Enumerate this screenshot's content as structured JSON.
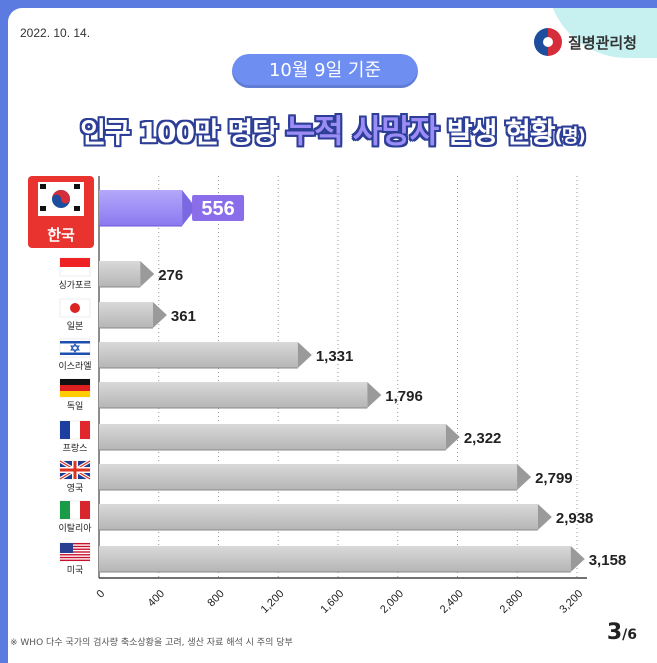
{
  "header": {
    "date": "2022. 10. 14.",
    "agency": "질병관리청",
    "basis": "10월 9일 기준",
    "title_pre": "인구 100만 명당 ",
    "title_hl": "누적 사망자",
    "title_post": " 발생 현황",
    "title_unit": "(명)"
  },
  "footer": {
    "note": "※ WHO 다수 국가의 검사량 축소상황을 고려, 생산 자료 해석 시 주의 당부",
    "page_current": "3",
    "page_total": "/6"
  },
  "colors": {
    "highlight_bar": "#9c8cf5",
    "bar": "#c8c8c8",
    "background": "#5b7be0",
    "title_outline": "#2c3e96"
  },
  "chart_data": {
    "type": "bar",
    "orientation": "horizontal",
    "title": "인구 100만 명당 누적 사망자 발생 현황(명)",
    "categories": [
      "한국",
      "싱가포르",
      "일본",
      "이스라엘",
      "독일",
      "프랑스",
      "영국",
      "이탈리아",
      "미국"
    ],
    "values": [
      556,
      276,
      361,
      1331,
      1796,
      2322,
      2799,
      2938,
      3158
    ],
    "value_labels": [
      "556",
      "276",
      "361",
      "1,331",
      "1,796",
      "2,322",
      "2,799",
      "2,938",
      "3,158"
    ],
    "flags": [
      "korea-flag",
      "singapore-flag",
      "japan-flag",
      "israel-flag",
      "germany-flag",
      "france-flag",
      "uk-flag",
      "italy-flag",
      "usa-flag"
    ],
    "highlight": "한국",
    "x_ticks": [
      0,
      400,
      800,
      1200,
      1600,
      2000,
      2400,
      2800,
      3200
    ],
    "x_tick_labels": [
      "0",
      "400",
      "800",
      "1,200",
      "1,600",
      "2,000",
      "2,400",
      "2,800",
      "3,200"
    ],
    "xlim": [
      0,
      3200
    ],
    "grid": "vertical dotted"
  }
}
